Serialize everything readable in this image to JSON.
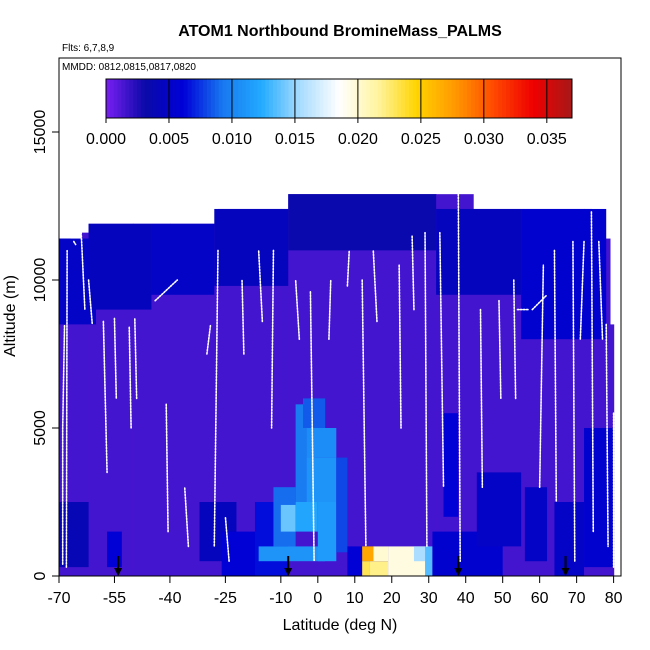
{
  "chart_data": {
    "type": "heatmap",
    "title": "ATOM1 Northbound BromineMass_PALMS",
    "flights_label": "Flts: 6,7,8,9",
    "dates_label": "MMDD: 0812,0815,0817,0820",
    "xlabel": "Latitude (deg N)",
    "ylabel": "Altitude (m)",
    "xlim": [
      -70,
      82
    ],
    "ylim": [
      0,
      17500
    ],
    "x_ticks": [
      -70,
      -55,
      -40,
      -25,
      -10,
      0,
      10,
      20,
      30,
      40,
      50,
      60,
      70,
      80
    ],
    "x_tick_labels": [
      "-70",
      "-55",
      "-40",
      "-25",
      "-10",
      "0",
      "10",
      "20",
      "30",
      "40",
      "50",
      "60",
      "70",
      "80"
    ],
    "y_ticks": [
      0,
      5000,
      10000,
      15000
    ],
    "y_tick_labels": [
      "0",
      "5000",
      "10000",
      "15000"
    ],
    "colorbar": {
      "min": 0.0,
      "max": 0.037,
      "ticks": [
        0.0,
        0.005,
        0.01,
        0.015,
        0.02,
        0.025,
        0.03,
        0.035
      ],
      "tick_labels": [
        "0.000",
        "0.005",
        "0.010",
        "0.015",
        "0.020",
        "0.025",
        "0.030",
        "0.035"
      ],
      "colors": [
        "#7a1ff2",
        "#0a0aa8",
        "#0000d8",
        "#1878f0",
        "#22aaff",
        "#a8dcff",
        "#ffffff",
        "#fff4a0",
        "#ffd400",
        "#ff9800",
        "#ff4800",
        "#ee0000",
        "#a81818"
      ]
    },
    "column_tops": [
      {
        "lat": -70,
        "top": 11400
      },
      {
        "lat": -67,
        "top": 11300
      },
      {
        "lat": -64,
        "top": 11600
      },
      {
        "lat": -62,
        "top": 11900
      },
      {
        "lat": -50,
        "top": 11900
      },
      {
        "lat": -40,
        "top": 11900
      },
      {
        "lat": -27,
        "top": 12400
      },
      {
        "lat": -10,
        "top": 12400
      },
      {
        "lat": -8,
        "top": 12900
      },
      {
        "lat": 32,
        "top": 12900
      },
      {
        "lat": 42,
        "top": 12400
      },
      {
        "lat": 72,
        "top": 12400
      },
      {
        "lat": 74,
        "top": 11900
      },
      {
        "lat": 77,
        "top": 11400
      },
      {
        "lat": 79,
        "top": 8500
      },
      {
        "lat": 80,
        "top": 8500
      }
    ],
    "background_value": 0.0015,
    "patches": [
      {
        "lat0": -70,
        "lat1": -60,
        "alt0": 8500,
        "alt1": 11400,
        "value": 0.005
      },
      {
        "lat0": -62,
        "lat1": -45,
        "alt0": 9000,
        "alt1": 11900,
        "value": 0.0045
      },
      {
        "lat0": -45,
        "lat1": -28,
        "alt0": 9500,
        "alt1": 11900,
        "value": 0.005
      },
      {
        "lat0": -28,
        "lat1": -8,
        "alt0": 9800,
        "alt1": 12400,
        "value": 0.0045
      },
      {
        "lat0": -8,
        "lat1": 32,
        "alt0": 11000,
        "alt1": 12900,
        "value": 0.0035
      },
      {
        "lat0": 32,
        "lat1": 55,
        "alt0": 9500,
        "alt1": 12400,
        "value": 0.0045
      },
      {
        "lat0": 55,
        "lat1": 78,
        "alt0": 8000,
        "alt1": 12400,
        "value": 0.0055
      },
      {
        "lat0": -70,
        "lat1": -62,
        "alt0": 300,
        "alt1": 2500,
        "value": 0.004
      },
      {
        "lat0": -57,
        "lat1": -53,
        "alt0": 300,
        "alt1": 1500,
        "value": 0.006
      },
      {
        "lat0": -32,
        "lat1": -22,
        "alt0": 500,
        "alt1": 2500,
        "value": 0.0045
      },
      {
        "lat0": -26,
        "lat1": -16,
        "alt0": 0,
        "alt1": 1500,
        "value": 0.006
      },
      {
        "lat0": -17,
        "lat1": -8,
        "alt0": 0,
        "alt1": 2500,
        "value": 0.0065
      },
      {
        "lat0": -12,
        "lat1": -6,
        "alt0": 1000,
        "alt1": 3000,
        "value": 0.009
      },
      {
        "lat0": -16,
        "lat1": 2,
        "alt0": 500,
        "alt1": 1000,
        "value": 0.011
      },
      {
        "lat0": -10,
        "lat1": -6,
        "alt0": 1500,
        "alt1": 2400,
        "value": 0.014
      },
      {
        "lat0": -6,
        "lat1": 0,
        "alt0": 1500,
        "alt1": 2500,
        "value": 0.012
      },
      {
        "lat0": -6,
        "lat1": -2,
        "alt0": 2500,
        "alt1": 5800,
        "value": 0.0095
      },
      {
        "lat0": -3,
        "lat1": 5,
        "alt0": 2500,
        "alt1": 4000,
        "value": 0.011
      },
      {
        "lat0": -3,
        "lat1": 5,
        "alt0": 4000,
        "alt1": 5000,
        "value": 0.0105
      },
      {
        "lat0": -4,
        "lat1": 2,
        "alt0": 5000,
        "alt1": 6000,
        "value": 0.0085
      },
      {
        "lat0": 0,
        "lat1": 5,
        "alt0": 500,
        "alt1": 2500,
        "value": 0.0115
      },
      {
        "lat0": 5,
        "lat1": 8,
        "alt0": 800,
        "alt1": 4000,
        "value": 0.008
      },
      {
        "lat0": 8,
        "lat1": 12,
        "alt0": 0,
        "alt1": 1000,
        "value": 0.006
      },
      {
        "lat0": 12,
        "lat1": 15,
        "alt0": 500,
        "alt1": 1000,
        "value": 0.027
      },
      {
        "lat0": 15,
        "lat1": 19,
        "alt0": 500,
        "alt1": 1000,
        "value": 0.02
      },
      {
        "lat0": 12,
        "lat1": 14,
        "alt0": 0,
        "alt1": 500,
        "value": 0.023
      },
      {
        "lat0": 14,
        "lat1": 19,
        "alt0": 0,
        "alt1": 500,
        "value": 0.022
      },
      {
        "lat0": 19,
        "lat1": 30,
        "alt0": 0,
        "alt1": 1000,
        "value": 0.0195
      },
      {
        "lat0": 26,
        "lat1": 29,
        "alt0": 500,
        "alt1": 1000,
        "value": 0.0155
      },
      {
        "lat0": 29,
        "lat1": 31,
        "alt0": 0,
        "alt1": 1000,
        "value": 0.0135
      },
      {
        "lat0": 31,
        "lat1": 50,
        "alt0": 0,
        "alt1": 1500,
        "value": 0.0055
      },
      {
        "lat0": 34,
        "lat1": 38,
        "alt0": 2000,
        "alt1": 5500,
        "value": 0.006
      },
      {
        "lat0": 43,
        "lat1": 55,
        "alt0": 1000,
        "alt1": 3500,
        "value": 0.005
      },
      {
        "lat0": 56,
        "lat1": 62,
        "alt0": 500,
        "alt1": 3000,
        "value": 0.005
      },
      {
        "lat0": 64,
        "lat1": 72,
        "alt0": 0,
        "alt1": 2500,
        "value": 0.005
      },
      {
        "lat0": 72,
        "lat1": 80,
        "alt0": 300,
        "alt1": 5000,
        "value": 0.0055
      }
    ],
    "flight_tracks": [
      {
        "x": [
          -69,
          -69,
          -68.5
        ],
        "y": [
          400,
          5000,
          8500
        ]
      },
      {
        "x": [
          -68,
          -67.8
        ],
        "y": [
          300,
          11000
        ]
      },
      {
        "x": [
          -66,
          -65.5
        ],
        "y": [
          11300,
          11200
        ]
      },
      {
        "x": [
          -64,
          -63
        ],
        "y": [
          11600,
          9000
        ]
      },
      {
        "x": [
          -62,
          -61
        ],
        "y": [
          10000,
          8500
        ]
      },
      {
        "x": [
          -58,
          -57
        ],
        "y": [
          8600,
          3500
        ]
      },
      {
        "x": [
          -55,
          -54.5
        ],
        "y": [
          8700,
          6000
        ]
      },
      {
        "x": [
          -51,
          -50.5
        ],
        "y": [
          8400,
          5000
        ]
      },
      {
        "x": [
          -49,
          -49.5
        ],
        "y": [
          6000,
          8700
        ]
      },
      {
        "x": [
          -44,
          -38
        ],
        "y": [
          9300,
          10000
        ]
      },
      {
        "x": [
          -41,
          -40.5
        ],
        "y": [
          5800,
          1500
        ]
      },
      {
        "x": [
          -35,
          -36
        ],
        "y": [
          1000,
          3000
        ]
      },
      {
        "x": [
          -30,
          -29
        ],
        "y": [
          7500,
          8500
        ]
      },
      {
        "x": [
          -27,
          -28
        ],
        "y": [
          11000,
          1000
        ]
      },
      {
        "x": [
          -24,
          -25
        ],
        "y": [
          500,
          2000
        ]
      },
      {
        "x": [
          -20,
          -20.5
        ],
        "y": [
          7500,
          10000
        ]
      },
      {
        "x": [
          -15,
          -16
        ],
        "y": [
          8600,
          11000
        ]
      },
      {
        "x": [
          -12,
          -12.5
        ],
        "y": [
          11000,
          5000
        ]
      },
      {
        "x": [
          -5,
          -6
        ],
        "y": [
          8000,
          10000
        ]
      },
      {
        "x": [
          -2,
          -1
        ],
        "y": [
          9600,
          500
        ]
      },
      {
        "x": [
          3,
          3.5
        ],
        "y": [
          8000,
          10000
        ]
      },
      {
        "x": [
          8,
          8.5
        ],
        "y": [
          9800,
          11000
        ]
      },
      {
        "x": [
          12,
          13
        ],
        "y": [
          10000,
          1000
        ]
      },
      {
        "x": [
          16,
          15
        ],
        "y": [
          8600,
          11000
        ]
      },
      {
        "x": [
          22,
          22.5
        ],
        "y": [
          10500,
          5000
        ]
      },
      {
        "x": [
          26,
          25.5
        ],
        "y": [
          9000,
          11500
        ]
      },
      {
        "x": [
          29,
          29.5
        ],
        "y": [
          11600,
          1000
        ]
      },
      {
        "x": [
          33,
          34
        ],
        "y": [
          11600,
          3000
        ]
      },
      {
        "x": [
          38,
          38.5
        ],
        "y": [
          12900,
          500
        ]
      },
      {
        "x": [
          44,
          44.5
        ],
        "y": [
          9000,
          3000
        ]
      },
      {
        "x": [
          49,
          49.5
        ],
        "y": [
          9300,
          6000
        ]
      },
      {
        "x": [
          53,
          53.5
        ],
        "y": [
          10000,
          6000
        ]
      },
      {
        "x": [
          54,
          57
        ],
        "y": [
          9000,
          9000
        ]
      },
      {
        "x": [
          58,
          62
        ],
        "y": [
          9000,
          9500
        ]
      },
      {
        "x": [
          60,
          61
        ],
        "y": [
          3000,
          10500
        ]
      },
      {
        "x": [
          64,
          64.5
        ],
        "y": [
          11000,
          2500
        ]
      },
      {
        "x": [
          69,
          69.5
        ],
        "y": [
          11300,
          500
        ]
      },
      {
        "x": [
          72,
          71
        ],
        "y": [
          11300,
          8000
        ]
      },
      {
        "x": [
          74,
          74.5
        ],
        "y": [
          12300,
          1500
        ]
      },
      {
        "x": [
          76,
          77
        ],
        "y": [
          11300,
          8000
        ]
      },
      {
        "x": [
          78,
          78.5
        ],
        "y": [
          8500,
          1000
        ]
      },
      {
        "x": [
          80,
          80
        ],
        "y": [
          5500,
          300
        ]
      }
    ],
    "arrows_lat": [
      -54,
      -8,
      38,
      67
    ]
  }
}
